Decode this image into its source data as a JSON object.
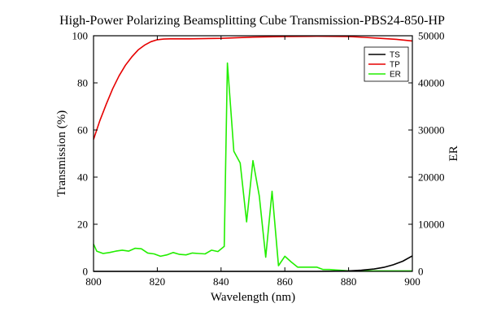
{
  "chart_data": {
    "type": "line",
    "title": "High-Power Polarizing Beamsplitting Cube Transmission-PBS24-850-HP",
    "xlabel": "Wavelength (nm)",
    "ylabel": "Transmission (%)",
    "y2label": "ER",
    "xlim": [
      800,
      900
    ],
    "ylim": [
      0,
      100
    ],
    "y2lim": [
      0,
      50000
    ],
    "x_ticks": [
      800,
      820,
      840,
      860,
      880,
      900
    ],
    "y_ticks": [
      0,
      20,
      40,
      60,
      80,
      100
    ],
    "y2_ticks": [
      0,
      10000,
      20000,
      30000,
      40000,
      50000
    ],
    "grid": false,
    "legend_position": "top-right",
    "series": [
      {
        "name": "TS",
        "axis": "left",
        "color": "#000000",
        "x": [
          800,
          810,
          820,
          830,
          840,
          850,
          860,
          870,
          876,
          880,
          884,
          888,
          891,
          894,
          897,
          900
        ],
        "y": [
          0,
          0,
          0,
          0,
          0,
          0,
          0,
          0,
          0.1,
          0.2,
          0.5,
          1.0,
          1.7,
          2.8,
          4.3,
          6.6
        ]
      },
      {
        "name": "TP",
        "axis": "left",
        "color": "#e60000",
        "x": [
          800,
          802,
          804,
          806,
          808,
          810,
          812,
          814,
          816,
          818,
          820,
          822,
          824,
          830,
          840,
          850,
          860,
          870,
          880,
          885,
          890,
          895,
          900
        ],
        "y": [
          56.0,
          64.0,
          71.0,
          77.5,
          83.0,
          87.5,
          91.0,
          94.0,
          96.0,
          97.5,
          98.3,
          98.6,
          98.7,
          98.7,
          98.9,
          99.4,
          99.7,
          99.8,
          99.7,
          99.3,
          98.9,
          98.5,
          97.8
        ]
      },
      {
        "name": "ER",
        "axis": "right",
        "color": "#22ee00",
        "x": [
          800,
          801,
          803,
          805,
          807,
          809,
          811,
          813,
          815,
          817,
          819,
          821,
          823,
          825,
          827,
          829,
          831,
          833,
          835,
          837,
          839,
          841,
          842,
          844,
          846,
          848,
          850,
          852,
          854,
          856,
          858,
          860,
          862,
          864,
          866,
          868,
          870,
          872,
          874,
          876,
          878,
          880,
          882,
          884,
          886,
          888,
          890,
          892,
          894,
          896,
          898,
          900
        ],
        "y": [
          5800,
          4300,
          3800,
          4000,
          4300,
          4500,
          4300,
          4900,
          4800,
          3900,
          3700,
          3200,
          3500,
          4000,
          3600,
          3500,
          3900,
          3800,
          3700,
          4500,
          4200,
          5300,
          44200,
          25500,
          23000,
          10500,
          23500,
          16000,
          3000,
          17000,
          1200,
          3200,
          2000,
          900,
          900,
          900,
          900,
          400,
          400,
          300,
          200,
          100,
          100,
          100,
          100,
          100,
          100,
          100,
          100,
          100,
          100,
          100
        ]
      }
    ]
  }
}
